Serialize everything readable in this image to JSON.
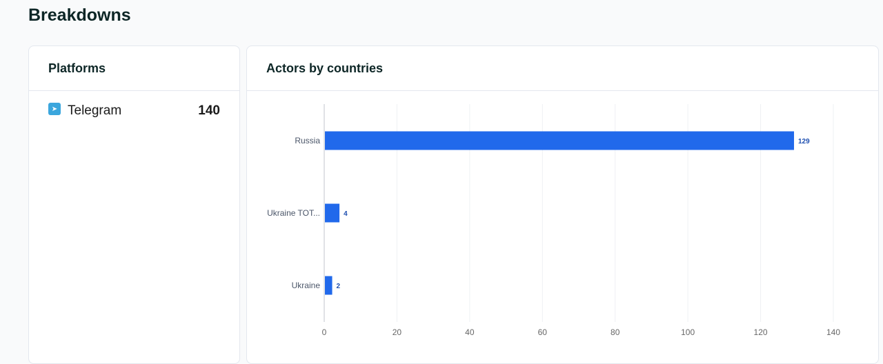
{
  "page_title": "Breakdowns",
  "platforms": {
    "title": "Platforms",
    "items": [
      {
        "name": "Telegram",
        "count": "140",
        "icon": "telegram-icon"
      }
    ]
  },
  "chart_data": {
    "type": "bar",
    "orientation": "horizontal",
    "title": "Actors by countries",
    "categories": [
      "Russia",
      "Ukraine TOT...",
      "Ukraine"
    ],
    "values": [
      129,
      4,
      2
    ],
    "xlim": [
      0,
      140
    ],
    "xticks": [
      0,
      20,
      40,
      60,
      80,
      100,
      120,
      140
    ],
    "grid": true,
    "bar_color": "#2169eb",
    "label_color": "#1e4fb0"
  }
}
